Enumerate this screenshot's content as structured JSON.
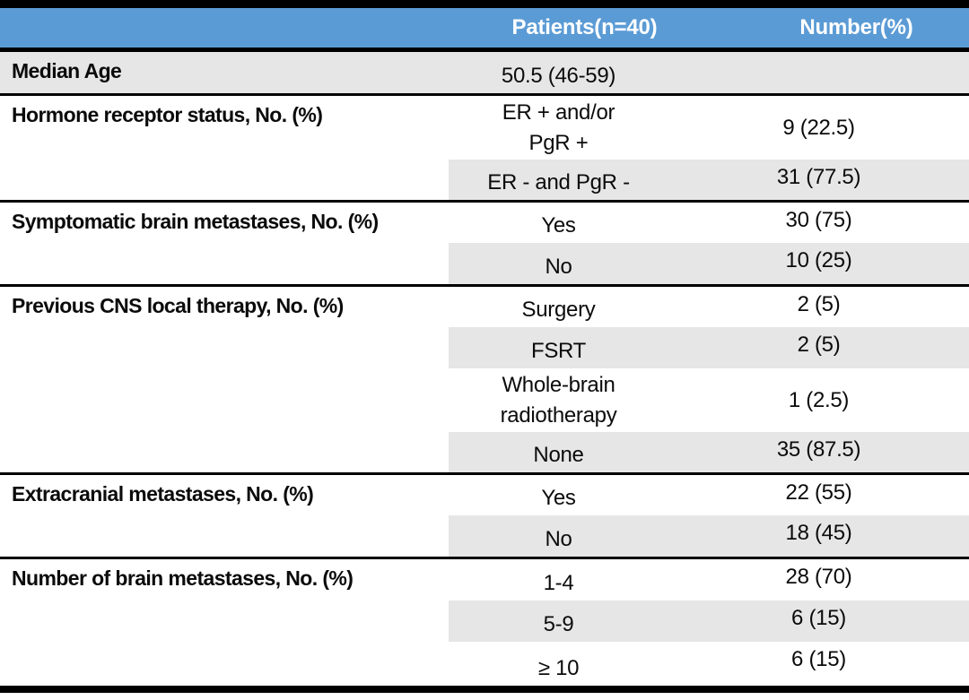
{
  "colors": {
    "header_bg": "#5b9bd5",
    "header_text": "#ffffff",
    "shade": "#e7e6e6",
    "rule": "#000000"
  },
  "table": {
    "header": {
      "patients": "Patients(n=40)",
      "number": "Number(%)"
    },
    "sections": [
      {
        "label": "Median Age",
        "rows": [
          {
            "category": "50.5 (46-59)",
            "value": ""
          }
        ]
      },
      {
        "label": "Hormone receptor status, No. (%)",
        "rows": [
          {
            "category": "ER + and/or\nPgR +",
            "value": "9 (22.5)"
          },
          {
            "category": "ER - and PgR -",
            "value": "31 (77.5)"
          }
        ]
      },
      {
        "label": "Symptomatic brain metastases, No. (%)",
        "rows": [
          {
            "category": "Yes",
            "value": "30 (75)"
          },
          {
            "category": "No",
            "value": "10 (25)"
          }
        ]
      },
      {
        "label": "Previous CNS local therapy, No. (%)",
        "rows": [
          {
            "category": "Surgery",
            "value": "2 (5)"
          },
          {
            "category": "FSRT",
            "value": "2 (5)"
          },
          {
            "category": "Whole-brain\nradiotherapy",
            "value": "1 (2.5)"
          },
          {
            "category": "None",
            "value": "35 (87.5)"
          }
        ]
      },
      {
        "label": "Extracranial metastases, No. (%)",
        "rows": [
          {
            "category": "Yes",
            "value": "22 (55)"
          },
          {
            "category": "No",
            "value": "18 (45)"
          }
        ]
      },
      {
        "label": "Number of brain metastases, No. (%)",
        "rows": [
          {
            "category": "1-4",
            "value": "28 (70)"
          },
          {
            "category": "5-9",
            "value": "6 (15)"
          },
          {
            "category": "≥ 10",
            "value": "6 (15)"
          }
        ]
      }
    ]
  }
}
